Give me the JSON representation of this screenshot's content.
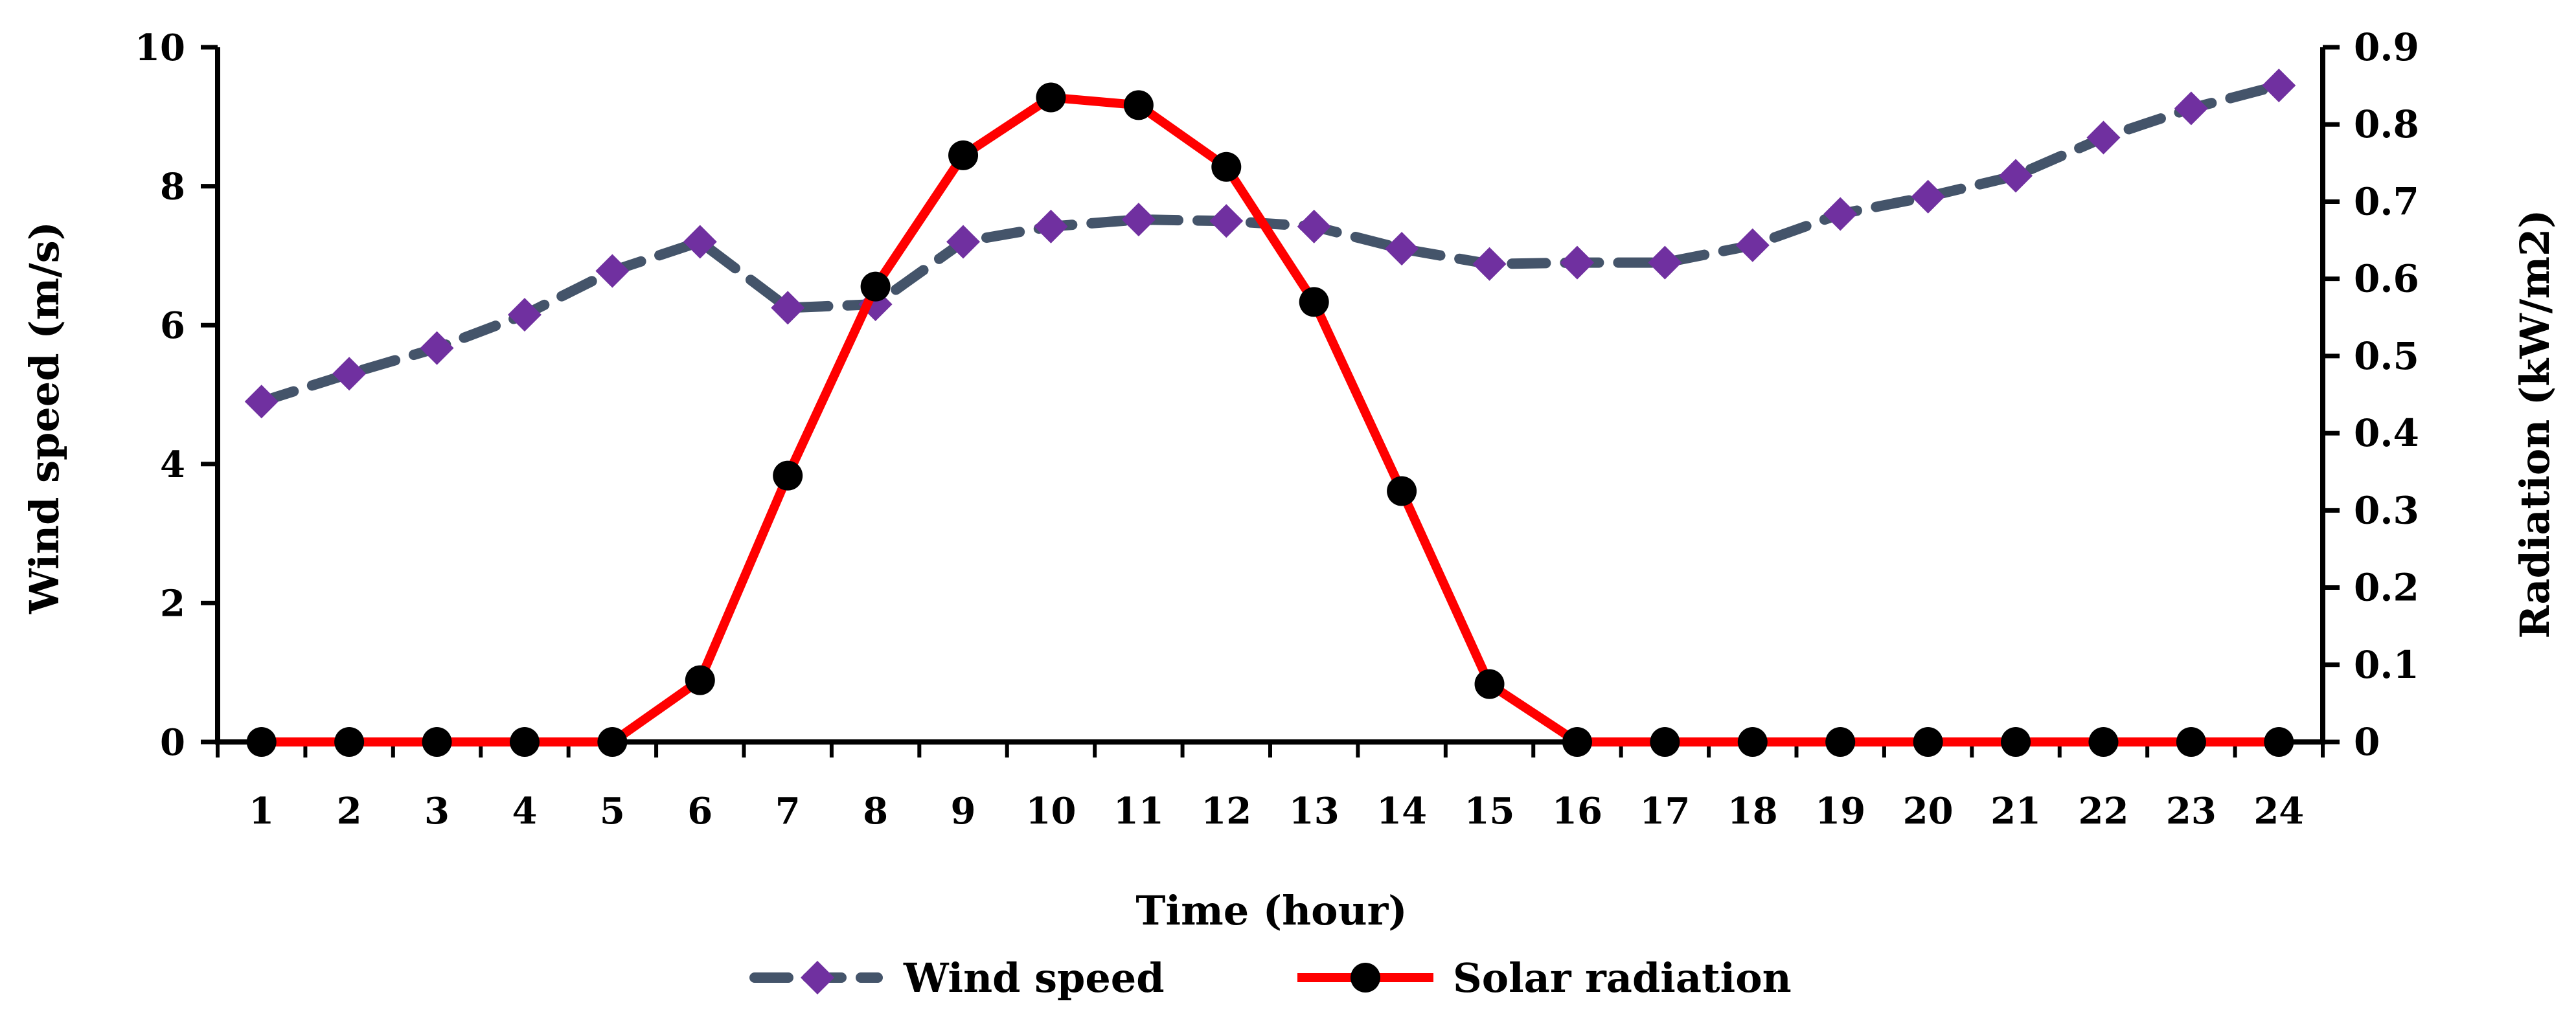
{
  "chart_data": {
    "type": "line",
    "title": "",
    "xlabel": "Time (hour)",
    "ylabel": "Wind speed (m/s)",
    "y2label": "Radiation (kW/m2)",
    "x": [
      1,
      2,
      3,
      4,
      5,
      6,
      7,
      8,
      9,
      10,
      11,
      12,
      13,
      14,
      15,
      16,
      17,
      18,
      19,
      20,
      21,
      22,
      23,
      24
    ],
    "ylim": [
      0,
      10
    ],
    "y_ticks": [
      0,
      2,
      4,
      6,
      8,
      10
    ],
    "y2lim": [
      0,
      0.9
    ],
    "y2_ticks": [
      "0",
      "0.1",
      "0.2",
      "0.3",
      "0.4",
      "0.5",
      "0.6",
      "0.7",
      "0.8",
      "0.9"
    ],
    "grid": false,
    "legend_position": "bottom-center",
    "series": [
      {
        "name": "Wind speed",
        "axis": "left",
        "color": "#44546A",
        "marker_color": "#7030A0",
        "style": "dashed",
        "marker": "diamond",
        "values": [
          4.9,
          5.3,
          5.67,
          6.15,
          6.78,
          7.2,
          6.25,
          6.3,
          7.2,
          7.42,
          7.52,
          7.5,
          7.42,
          7.1,
          6.88,
          6.9,
          6.9,
          7.15,
          7.6,
          7.85,
          8.15,
          8.7,
          9.12,
          9.45
        ]
      },
      {
        "name": "Solar radiation",
        "axis": "right",
        "color": "#FF0000",
        "marker_color": "#000000",
        "style": "solid",
        "marker": "circle",
        "values": [
          0,
          0,
          0,
          0,
          0,
          0.08,
          0.345,
          0.59,
          0.76,
          0.835,
          0.825,
          0.745,
          0.57,
          0.325,
          0.075,
          0,
          0,
          0,
          0,
          0,
          0,
          0,
          0,
          0
        ]
      }
    ]
  }
}
